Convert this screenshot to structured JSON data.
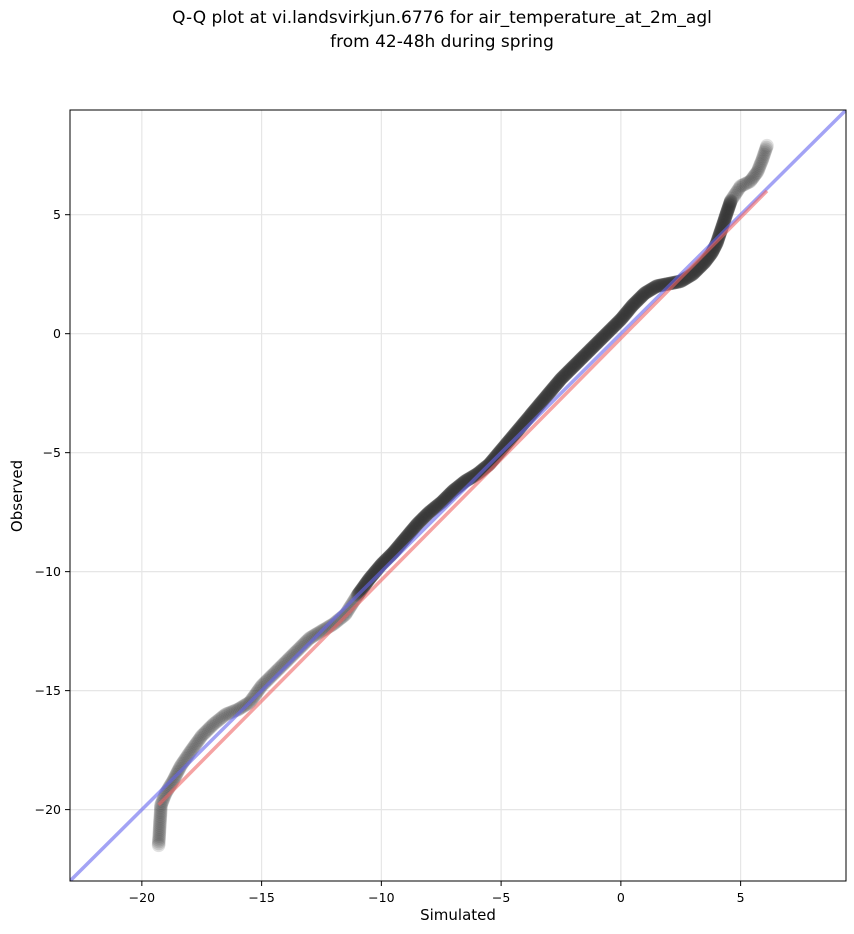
{
  "chart_data": {
    "type": "scatter",
    "title_line1": "Q-Q plot at vi.landsvirkjun.6776 for air_temperature_at_2m_agl",
    "title_line2": "from 42-48h during spring",
    "xlabel": "Simulated",
    "ylabel": "Observed",
    "xlim": [
      -23.0,
      9.4
    ],
    "ylim": [
      -23.0,
      9.4
    ],
    "xticks": [
      -20,
      -15,
      -10,
      -5,
      0,
      5
    ],
    "yticks": [
      -20,
      -15,
      -10,
      -5,
      0,
      5
    ],
    "xtick_labels": [
      "−20",
      "−15",
      "−10",
      "−5",
      "0",
      "5"
    ],
    "ytick_labels": [
      "−20",
      "−15",
      "−10",
      "−5",
      "0",
      "5"
    ],
    "grid": true,
    "colors": {
      "points": "#333333",
      "identity_line": "#6666ee",
      "fit_line": "#ee6666",
      "grid": "#e6e6e6"
    },
    "identity_line": {
      "x": [
        -23.0,
        9.4
      ],
      "y": [
        -23.0,
        9.4
      ]
    },
    "fit_line": {
      "x": [
        -19.3,
        6.1
      ],
      "y": [
        -19.8,
        6.0
      ]
    },
    "quantile_curve": {
      "x": [
        -19.3,
        -19.2,
        -19.0,
        -18.7,
        -18.4,
        -18.0,
        -17.5,
        -17.0,
        -16.5,
        -16.0,
        -15.5,
        -15.0,
        -14.5,
        -14.0,
        -13.5,
        -13.0,
        -12.5,
        -12.0,
        -11.5,
        -11.0,
        -10.5,
        -10.0,
        -9.5,
        -9.0,
        -8.5,
        -8.0,
        -7.5,
        -7.0,
        -6.5,
        -6.0,
        -5.5,
        -5.0,
        -4.5,
        -4.0,
        -3.5,
        -3.0,
        -2.5,
        -2.0,
        -1.5,
        -1.0,
        -0.5,
        0.0,
        0.5,
        1.0,
        1.5,
        2.0,
        2.5,
        3.0,
        3.5,
        3.8,
        4.0,
        4.3,
        4.6,
        5.0,
        5.4,
        5.7,
        5.9,
        6.1
      ],
      "y": [
        -21.5,
        -19.8,
        -19.3,
        -18.8,
        -18.2,
        -17.6,
        -16.9,
        -16.4,
        -16.0,
        -15.8,
        -15.5,
        -14.8,
        -14.3,
        -13.8,
        -13.3,
        -12.8,
        -12.5,
        -12.2,
        -11.8,
        -11.0,
        -10.3,
        -9.7,
        -9.2,
        -8.6,
        -8.0,
        -7.5,
        -7.1,
        -6.6,
        -6.2,
        -5.9,
        -5.5,
        -4.9,
        -4.3,
        -3.7,
        -3.1,
        -2.5,
        -1.9,
        -1.4,
        -0.9,
        -0.4,
        0.1,
        0.6,
        1.2,
        1.7,
        2.0,
        2.1,
        2.2,
        2.5,
        3.0,
        3.4,
        3.8,
        4.7,
        5.6,
        6.2,
        6.4,
        6.8,
        7.3,
        7.9
      ]
    }
  }
}
